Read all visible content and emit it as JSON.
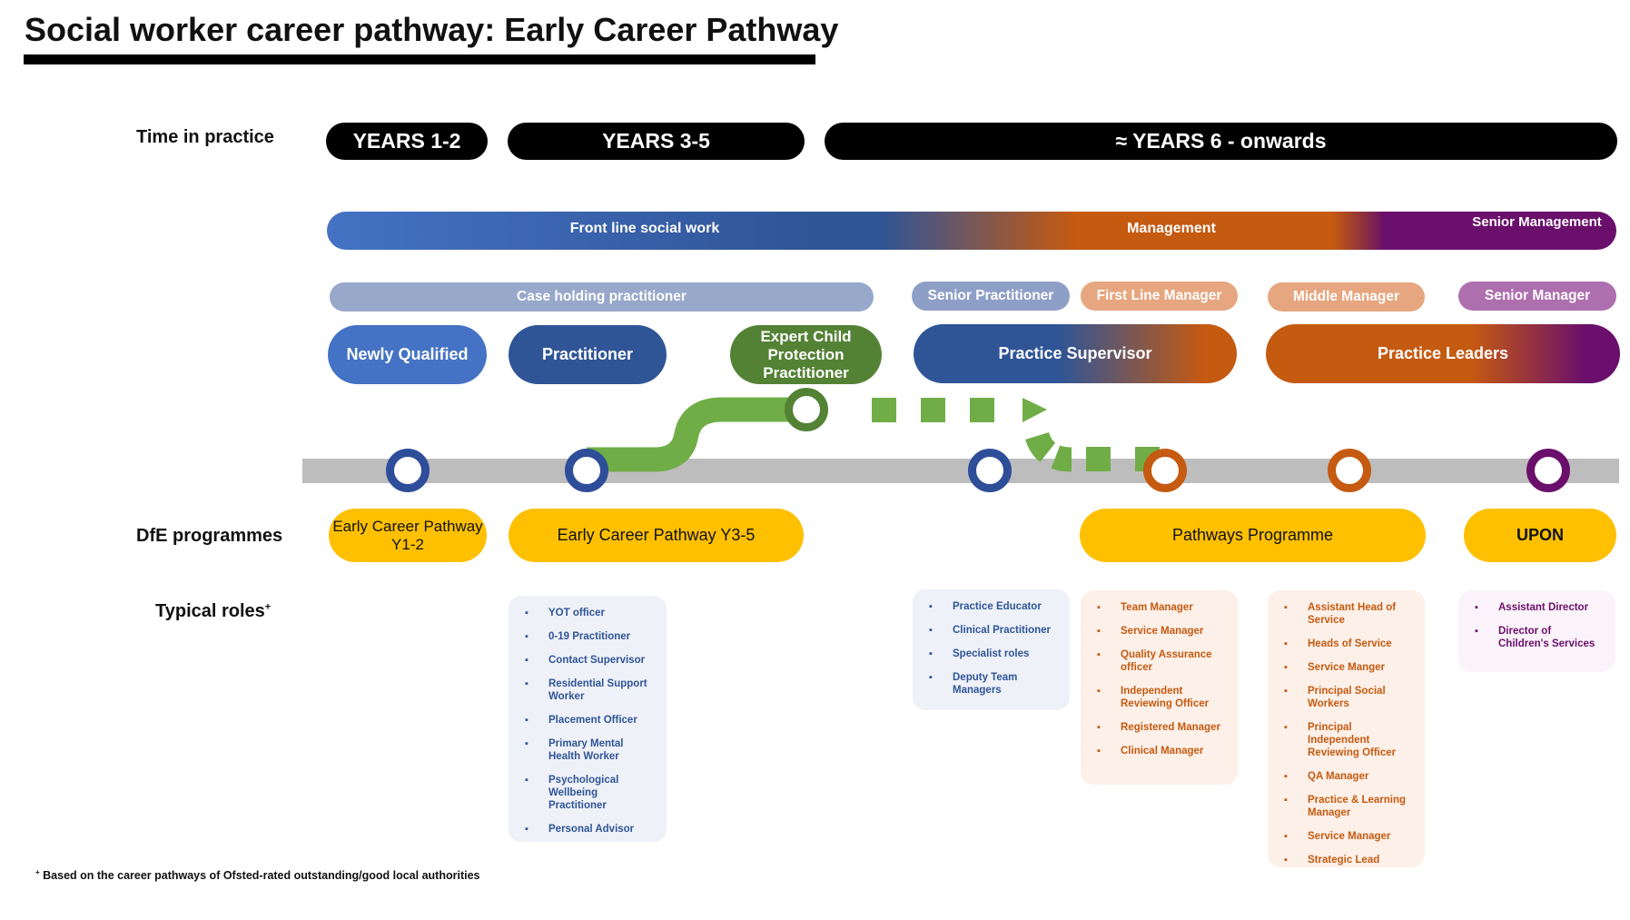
{
  "title": "Social worker career pathway: Early Career Pathway",
  "labels": {
    "time_in_practice": "Time in practice",
    "dfe_programmes": "DfE programmes",
    "typical_roles": "Typical roles",
    "typical_roles_mark": "+"
  },
  "years": [
    "YEARS 1-2",
    "YEARS 3-5",
    "≈ YEARS 6 - onwards"
  ],
  "bands": {
    "front_line": "Front line social work",
    "management": "Management",
    "senior_management": "Senior Management"
  },
  "subbands": {
    "case_holding": "Case holding practitioner",
    "senior_practitioner": "Senior Practitioner",
    "first_line_manager": "First Line Manager",
    "middle_manager": "Middle Manager",
    "senior_manager": "Senior Manager"
  },
  "roles": {
    "newly_qualified": "Newly Qualified",
    "practitioner": "Practitioner",
    "expert_cp": "Expert Child Protection Practitioner",
    "practice_supervisor": "Practice Supervisor",
    "practice_leaders": "Practice Leaders"
  },
  "dfe": {
    "ecp_y1_2": "Early Career Pathway Y1-2",
    "ecp_y3_5": "Early Career Pathway Y3-5",
    "pathways": "Pathways Programme",
    "upon": "UPON"
  },
  "typical_roles_lists": {
    "practitioner": [
      "YOT officer",
      "0-19 Practitioner",
      "Contact Supervisor",
      "Residential Support Worker",
      "Placement Officer",
      "Primary Mental Health Worker",
      "Psychological Wellbeing Practitioner",
      "Personal Advisor"
    ],
    "senior_practitioner": [
      "Practice Educator",
      "Clinical Practitioner",
      "Specialist roles",
      "Deputy Team Managers"
    ],
    "first_line_manager": [
      "Team Manager",
      "Service Manager",
      "Quality Assurance officer",
      "Independent Reviewing Officer",
      "Registered Manager",
      "Clinical Manager"
    ],
    "middle_manager": [
      "Assistant Head of Service",
      "Heads of Service",
      "Service Manger",
      "Principal Social Workers",
      "Principal Independent Reviewing Officer",
      "QA Manager",
      "Practice & Learning Manager",
      "Service Manager",
      "Strategic Lead"
    ],
    "senior_manager": [
      "Assistant Director",
      "Director of Children's Services"
    ]
  },
  "footnote_mark": "+",
  "footnote": "Based on the career pathways of Ofsted-rated outstanding/good local authorities",
  "colors": {
    "blue": "#4472C4",
    "dark_blue": "#2E4E9A",
    "orange": "#C55A11",
    "purple": "#6A0F6B",
    "green": "#6AA84F",
    "yellow": "#FEC000"
  }
}
